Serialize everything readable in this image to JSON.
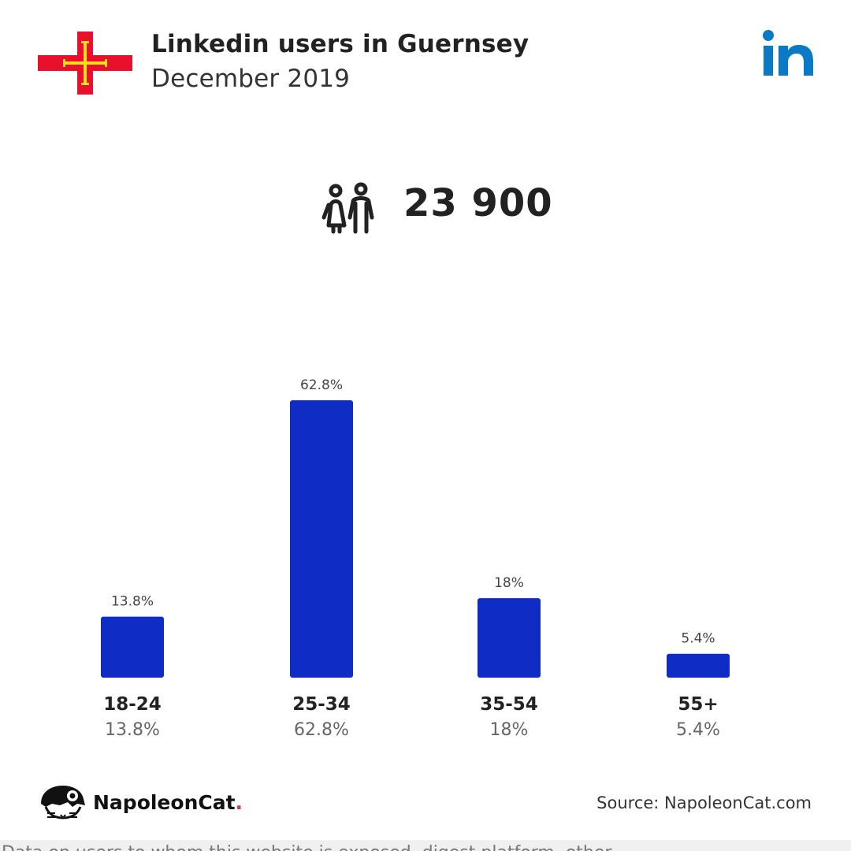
{
  "header": {
    "title": "Linkedin users in Guernsey",
    "subtitle": "December 2019"
  },
  "summary": {
    "total_users": "23 900",
    "icon": "users-icon"
  },
  "colors": {
    "bar": "#0f2cc4",
    "linkedin": "#0a7ac4",
    "flag_red": "#e8112d",
    "flag_yellow": "#f9dd16"
  },
  "chart_data": {
    "type": "bar",
    "categories": [
      "18-24",
      "25-34",
      "35-54",
      "55+"
    ],
    "values": [
      13.8,
      62.8,
      18,
      5.4
    ],
    "value_labels": [
      "13.8%",
      "62.8%",
      "18%",
      "5.4%"
    ],
    "title": "",
    "xlabel": "",
    "ylabel": "",
    "ylim": [
      0,
      62.8
    ],
    "grid": false,
    "legend": "none"
  },
  "footer": {
    "brand": "NapoleonCat",
    "brand_dot": ".",
    "source": "Source: NapoleonCat.com",
    "disclaimer": "Data on users to whom this website is exposed, digest platform, other ..."
  }
}
